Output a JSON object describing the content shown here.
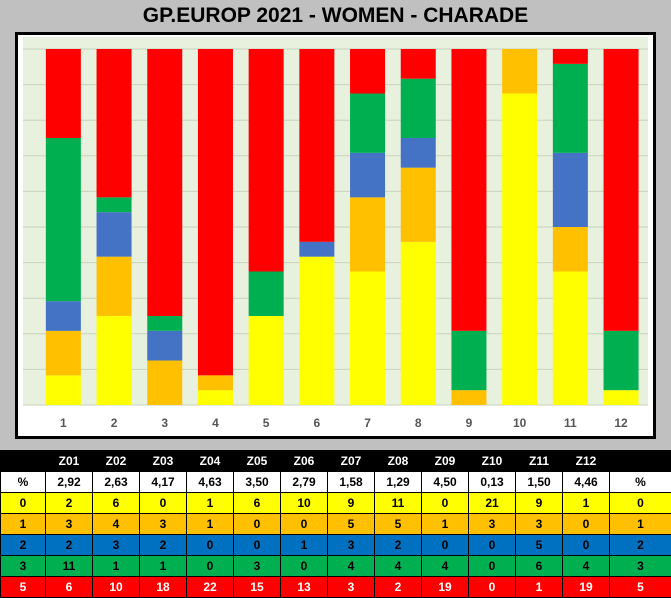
{
  "title": "GP.EUROP 2021 - WOMEN  - CHARADE",
  "colors": {
    "plot_bg": "#e8f0de",
    "grid": "#c8d2bc",
    "tick_text": "#555555",
    "level_0": "#ffff00",
    "level_1": "#ffc000",
    "level_2": "#4472c4",
    "level_3": "#00b050",
    "level_5": "#ff0000"
  },
  "chart_data": {
    "type": "bar",
    "stacked": true,
    "normalized": "percent",
    "title": "GP.EUROP 2021 - WOMEN  - CHARADE",
    "categories": [
      "1",
      "2",
      "3",
      "4",
      "5",
      "6",
      "7",
      "8",
      "9",
      "10",
      "11",
      "12"
    ],
    "grid": true,
    "legend": "none",
    "series": [
      {
        "key": "0",
        "color": "#ffff00",
        "values": [
          2,
          6,
          0,
          1,
          6,
          10,
          9,
          11,
          0,
          21,
          9,
          1
        ]
      },
      {
        "key": "1",
        "color": "#ffc000",
        "values": [
          3,
          4,
          3,
          1,
          0,
          0,
          5,
          5,
          1,
          3,
          3,
          0
        ]
      },
      {
        "key": "2",
        "color": "#4472c4",
        "values": [
          2,
          3,
          2,
          0,
          0,
          1,
          3,
          2,
          0,
          0,
          5,
          0
        ]
      },
      {
        "key": "3",
        "color": "#00b050",
        "values": [
          11,
          1,
          1,
          0,
          3,
          0,
          4,
          4,
          4,
          0,
          6,
          4
        ]
      },
      {
        "key": "5",
        "color": "#ff0000",
        "values": [
          6,
          10,
          18,
          22,
          15,
          13,
          3,
          2,
          19,
          0,
          1,
          19
        ]
      }
    ]
  },
  "table": {
    "header": [
      "",
      "Z01",
      "Z02",
      "Z03",
      "Z04",
      "Z05",
      "Z06",
      "Z07",
      "Z08",
      "Z09",
      "Z10",
      "Z11",
      "Z12",
      ""
    ],
    "rows": [
      {
        "bg": "#ffffff",
        "fg": "#000000",
        "cells": [
          "%",
          "2,92",
          "2,63",
          "4,17",
          "4,63",
          "3,50",
          "2,79",
          "1,58",
          "1,29",
          "4,50",
          "0,13",
          "1,50",
          "4,46",
          "%"
        ]
      },
      {
        "bg": "#ffff00",
        "fg": "#000000",
        "cells": [
          "0",
          "2",
          "6",
          "0",
          "1",
          "6",
          "10",
          "9",
          "11",
          "0",
          "21",
          "9",
          "1",
          "0"
        ]
      },
      {
        "bg": "#ffc000",
        "fg": "#000000",
        "cells": [
          "1",
          "3",
          "4",
          "3",
          "1",
          "0",
          "0",
          "5",
          "5",
          "1",
          "3",
          "3",
          "0",
          "1"
        ]
      },
      {
        "bg": "#0070c0",
        "fg": "#000000",
        "cells": [
          "2",
          "2",
          "3",
          "2",
          "0",
          "0",
          "1",
          "3",
          "2",
          "0",
          "0",
          "5",
          "0",
          "2"
        ]
      },
      {
        "bg": "#00b050",
        "fg": "#000000",
        "cells": [
          "3",
          "11",
          "1",
          "1",
          "0",
          "3",
          "0",
          "4",
          "4",
          "4",
          "0",
          "6",
          "4",
          "3"
        ]
      },
      {
        "bg": "#ff0000",
        "fg": "#ffffff",
        "cells": [
          "5",
          "6",
          "10",
          "18",
          "22",
          "15",
          "13",
          "3",
          "2",
          "19",
          "0",
          "1",
          "19",
          "5"
        ]
      }
    ]
  }
}
